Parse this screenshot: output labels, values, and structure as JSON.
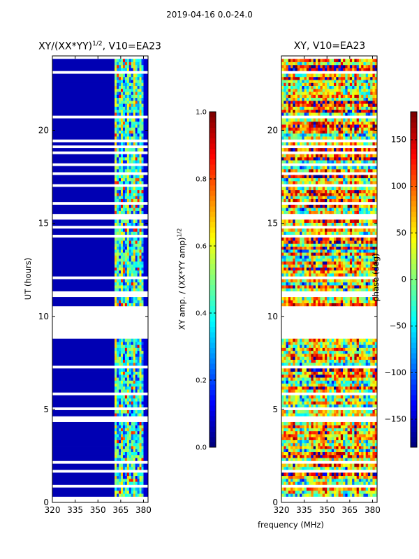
{
  "figure": {
    "suptitle": "2019-04-16 0.0-24.0",
    "xlabel": "frequency (MHz)",
    "left_title": "XY/(XX*YY)",
    "left_title_sup": "1/2",
    "left_title_suffix": ", V10=EA23",
    "right_title": "XY, V10=EA23"
  },
  "chart_data": [
    {
      "type": "heatmap",
      "name": "amplitude-ratio",
      "title": "XY/(XX*YY)^1/2, V10=EA23",
      "xlabel": "frequency (MHz)",
      "ylabel": "UT (hours)",
      "xlim": [
        320,
        383
      ],
      "ylim": [
        0,
        24
      ],
      "xticks": [
        320,
        335,
        350,
        365,
        380
      ],
      "yticks": [
        0,
        5,
        10,
        15,
        20
      ],
      "colormap": "jet",
      "colorbar": {
        "label": "XY amp. / (XX*YY amp)",
        "label_sup": "1/2",
        "range": [
          0,
          1
        ],
        "ticks": [
          "0.0",
          "0.2",
          "0.4",
          "0.6",
          "0.8",
          "1.0"
        ]
      },
      "description_values": {
        "low_band_MHz": [
          320,
          361
        ],
        "low_band_level": 0.05,
        "high_band_MHz": [
          361,
          380
        ],
        "high_band_level_range": [
          0.1,
          0.9
        ],
        "gap_UT_hours": [
          8.95,
          10.45
        ]
      }
    },
    {
      "type": "heatmap",
      "name": "phase",
      "title": "XY, V10=EA23",
      "xlabel": "frequency (MHz)",
      "ylabel": "",
      "xlim": [
        320,
        383
      ],
      "ylim": [
        0,
        24
      ],
      "xticks": [
        320,
        335,
        350,
        365,
        380
      ],
      "yticks": [
        0,
        5,
        10,
        15,
        20
      ],
      "colormap": "jet",
      "colorbar": {
        "label": "phase (deg)",
        "range": [
          -180,
          180
        ],
        "ticks": [
          "−150",
          "−100",
          "−50",
          "0",
          "50",
          "100",
          "150"
        ]
      },
      "description_values": {
        "phase_range_deg": [
          -180,
          180
        ],
        "gap_UT_hours": [
          8.95,
          10.45
        ]
      }
    }
  ]
}
